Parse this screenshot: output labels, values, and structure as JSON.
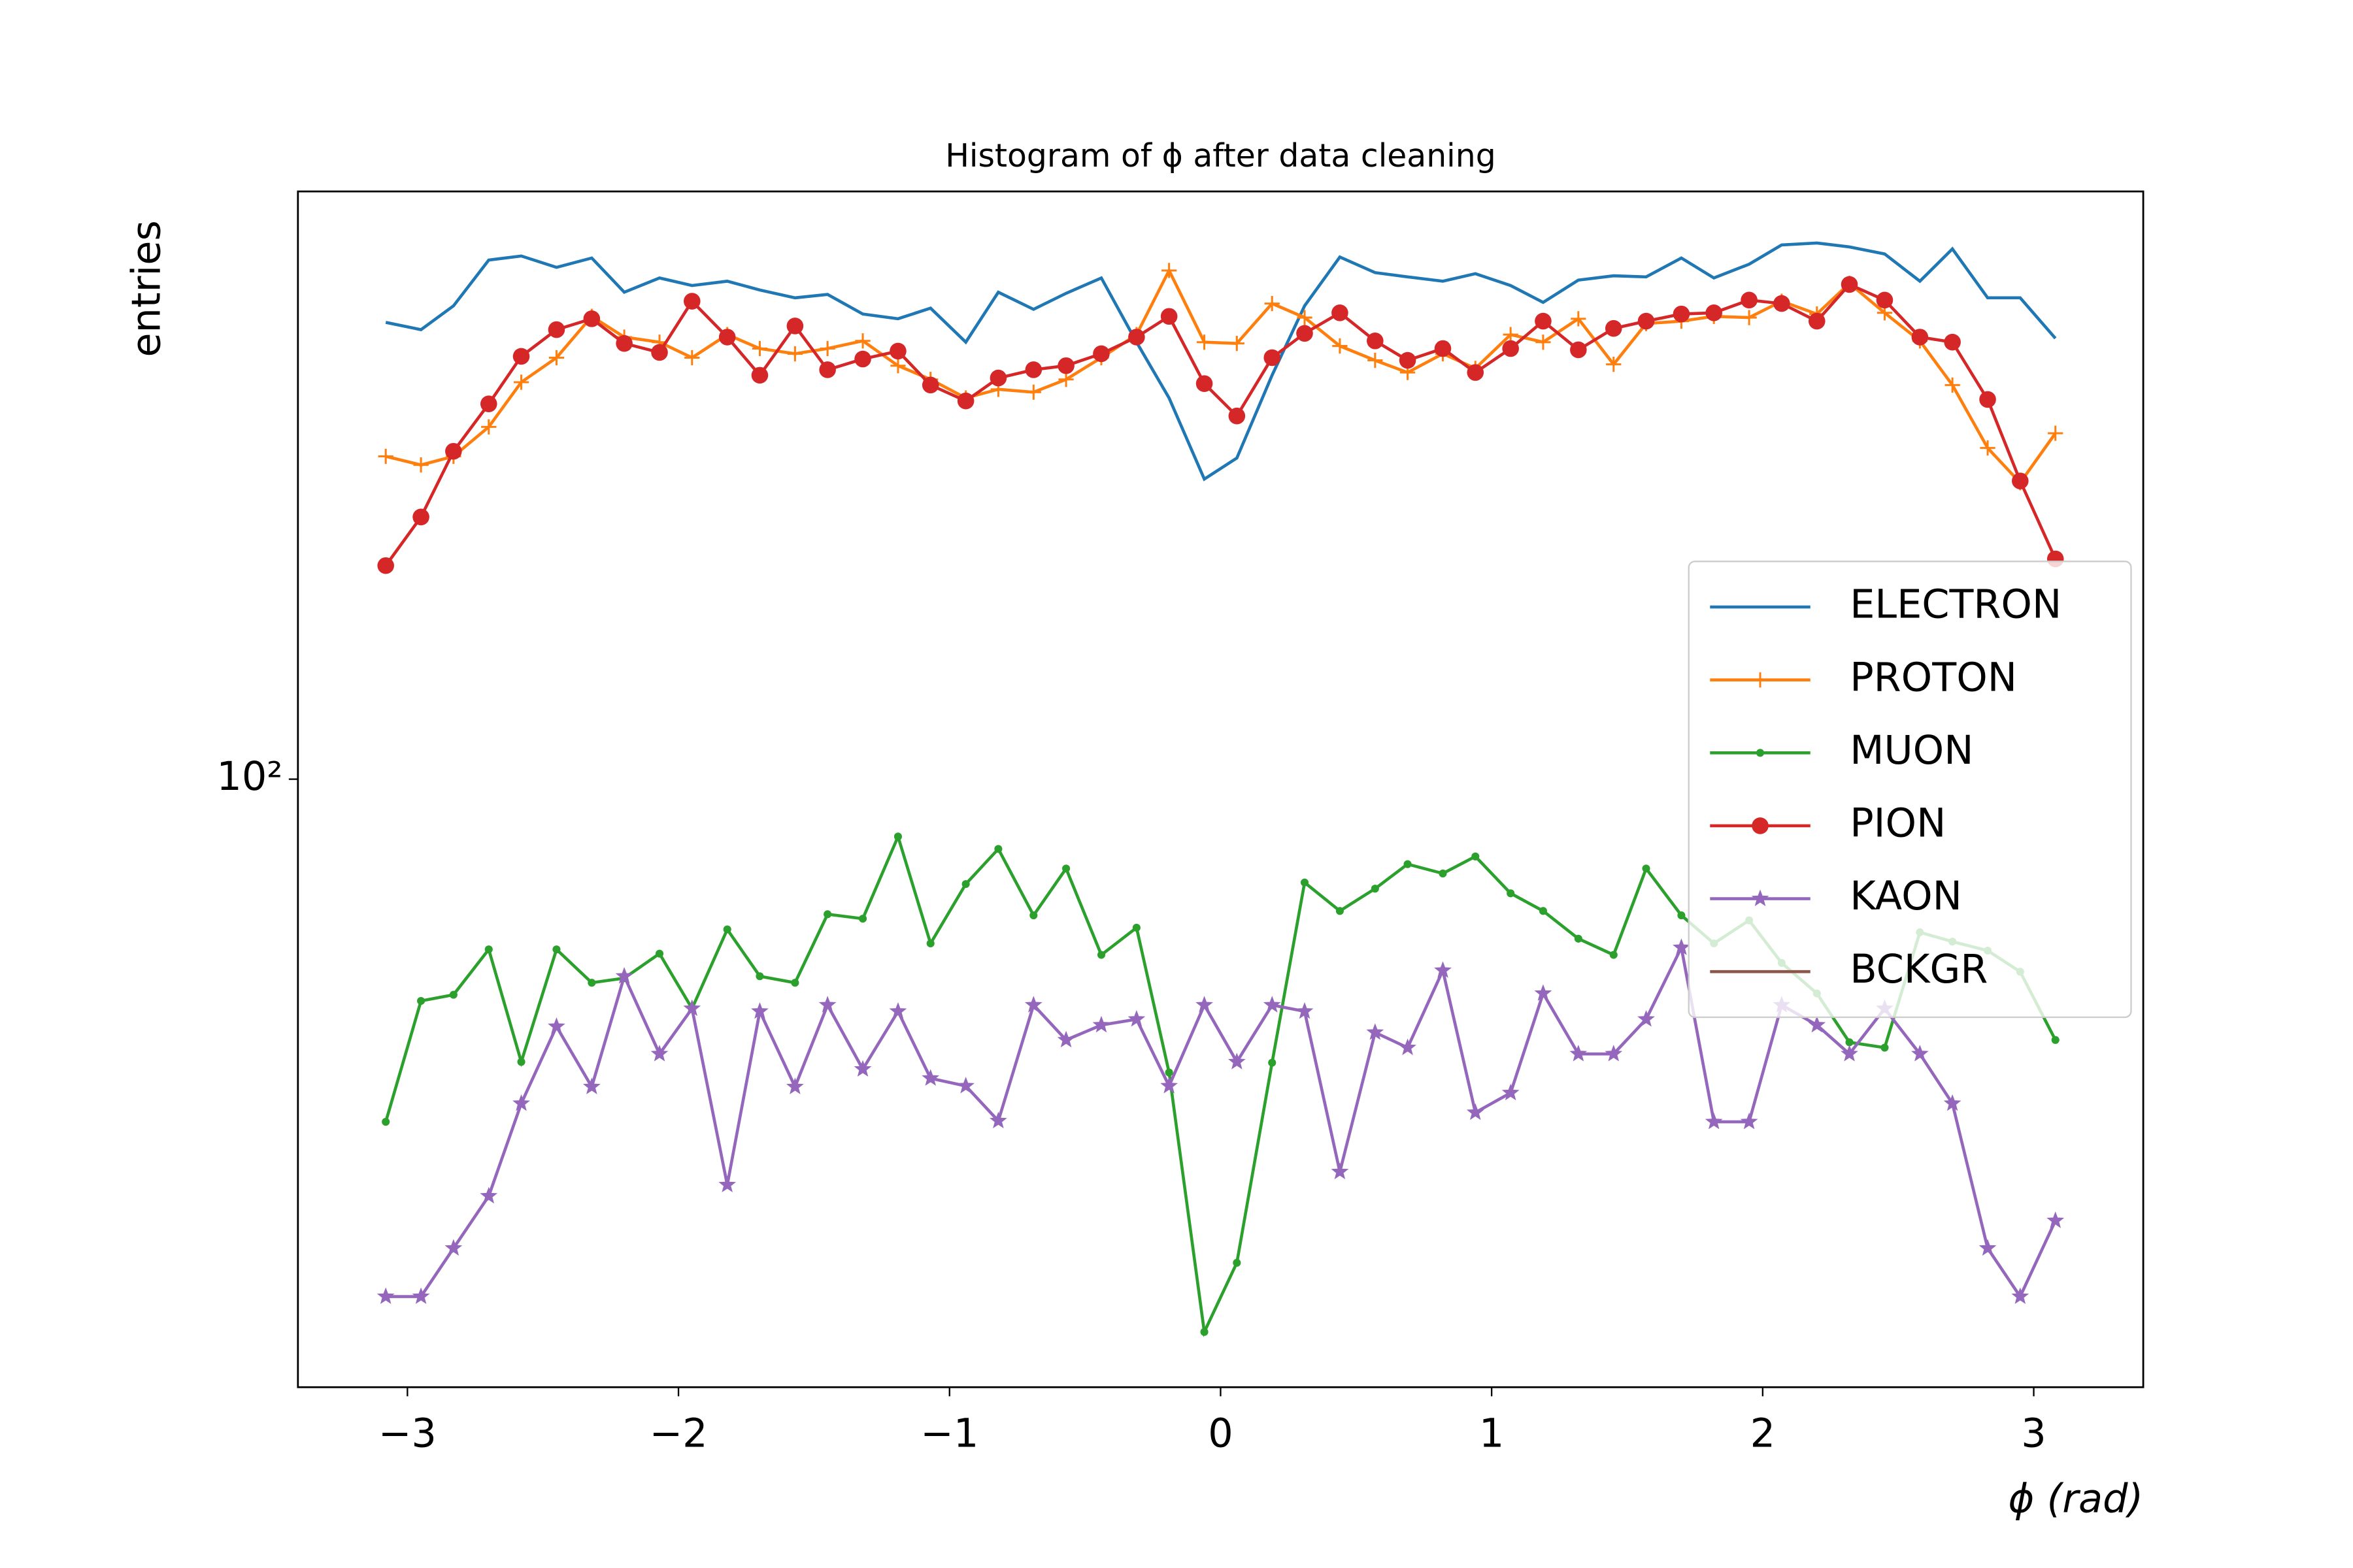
{
  "chart_data": {
    "type": "line",
    "title": "Histogram of ϕ after data cleaning",
    "xlabel": "ϕ (rad)",
    "ylabel": "entries",
    "yscale": "log",
    "legend": "center right",
    "grid": false,
    "xlim": [
      -3.404,
      3.404
    ],
    "ylim": [
      21,
      452
    ],
    "xticks": [
      {
        "value": -3,
        "label": "−3"
      },
      {
        "value": -2,
        "label": "−2"
      },
      {
        "value": -1,
        "label": "−1"
      },
      0,
      1,
      2,
      3
    ],
    "yticks": [
      {
        "value": 100,
        "label": "10²"
      }
    ],
    "x": [
      -3.08,
      -2.95,
      -2.83,
      -2.7,
      -2.58,
      -2.45,
      -2.32,
      -2.2,
      -2.07,
      -1.95,
      -1.82,
      -1.7,
      -1.57,
      -1.45,
      -1.32,
      -1.19,
      -1.07,
      -0.94,
      -0.82,
      -0.69,
      -0.57,
      -0.44,
      -0.31,
      -0.19,
      -0.06,
      0.06,
      0.19,
      0.31,
      0.44,
      0.57,
      0.69,
      0.82,
      0.94,
      1.07,
      1.19,
      1.32,
      1.45,
      1.57,
      1.7,
      1.82,
      1.95,
      2.07,
      2.2,
      2.32,
      2.45,
      2.58,
      2.7,
      2.83,
      2.95,
      3.08
    ],
    "series": [
      {
        "name": "ELECTRON",
        "color": "#1f77b4",
        "marker": "none",
        "values": [
          323,
          317,
          337,
          379,
          383,
          372,
          381,
          349,
          362,
          355,
          359,
          351,
          344,
          347,
          330,
          326,
          335,
          307,
          349,
          334,
          348,
          362,
          307,
          266,
          216,
          228,
          282,
          337,
          382,
          367,
          363,
          359,
          366,
          355,
          340,
          360,
          364,
          363,
          381,
          362,
          375,
          394,
          396,
          392,
          385,
          359,
          390,
          344,
          344,
          310
        ]
      },
      {
        "name": "PROTON",
        "color": "#ff7f0e",
        "marker": "plus",
        "values": [
          229,
          224,
          229,
          247,
          277,
          295,
          328,
          311,
          307,
          295,
          313,
          302,
          298,
          302,
          308,
          289,
          279,
          266,
          272,
          270,
          279,
          295,
          313,
          369,
          307,
          306,
          339,
          327,
          304,
          293,
          284,
          298,
          287,
          313,
          307,
          326,
          290,
          322,
          324,
          328,
          327,
          341,
          330,
          357,
          331,
          308,
          275,
          234,
          214,
          243
        ]
      },
      {
        "name": "MUON",
        "color": "#2ca02c",
        "marker": "dot",
        "values": [
          41.5,
          56.6,
          57.5,
          64.6,
          48.4,
          64.6,
          59.3,
          60.0,
          63.9,
          55.5,
          68.0,
          60.3,
          59.3,
          70.7,
          69.9,
          86.3,
          65.6,
          76.4,
          83.6,
          70.5,
          79.5,
          63.7,
          68.3,
          47.1,
          24.2,
          28.9,
          48.3,
          76.7,
          71.3,
          75.5,
          80.4,
          78.5,
          82.0,
          74.6,
          71.3,
          66.4,
          63.7,
          79.5,
          70.5,
          65.6,
          69.6,
          62.4,
          57.7,
          50.9,
          50.2,
          67.5,
          65.9,
          64.4,
          61.0,
          51.2
        ]
      },
      {
        "name": "PION",
        "color": "#d62728",
        "marker": "circle",
        "values": [
          173,
          196,
          232,
          262,
          296,
          317,
          326,
          306,
          299,
          341,
          311,
          282,
          320,
          286,
          294,
          300,
          275,
          264,
          280,
          286,
          289,
          298,
          311,
          328,
          276,
          254,
          295,
          314,
          331,
          308,
          293,
          302,
          284,
          302,
          324,
          301,
          318,
          324,
          330,
          331,
          342,
          339,
          324,
          356,
          342,
          311,
          307,
          265,
          215,
          176
        ]
      },
      {
        "name": "KAON",
        "color": "#9467bd",
        "marker": "star",
        "values": [
          26.5,
          26.5,
          30.0,
          34.3,
          43.5,
          53.0,
          45.4,
          60.3,
          49.4,
          55.5,
          35.3,
          55.1,
          45.4,
          56.0,
          47.5,
          55.1,
          46.4,
          45.5,
          41.6,
          56.0,
          51.2,
          53.2,
          54.0,
          45.5,
          56.0,
          48.4,
          56.0,
          55.1,
          36.5,
          52.2,
          50.2,
          61.2,
          42.5,
          44.7,
          57.7,
          49.4,
          49.4,
          54.0,
          64.9,
          41.5,
          41.5,
          56.0,
          53.2,
          49.4,
          55.5,
          49.4,
          43.5,
          30.0,
          26.5,
          32.2
        ]
      },
      {
        "name": "BCKGR",
        "color": "#8c564b",
        "marker": "none",
        "values": [
          0,
          0,
          0,
          0,
          0,
          0,
          0,
          0,
          0,
          0,
          0,
          0,
          0,
          0,
          0,
          0,
          0,
          0,
          0,
          0,
          0,
          0,
          0,
          0,
          0,
          0,
          0,
          0,
          0,
          0,
          0,
          0,
          0,
          0,
          0,
          0,
          0,
          0,
          0,
          0,
          0,
          0,
          0,
          0,
          0,
          0,
          0,
          0,
          0,
          0
        ]
      }
    ]
  }
}
